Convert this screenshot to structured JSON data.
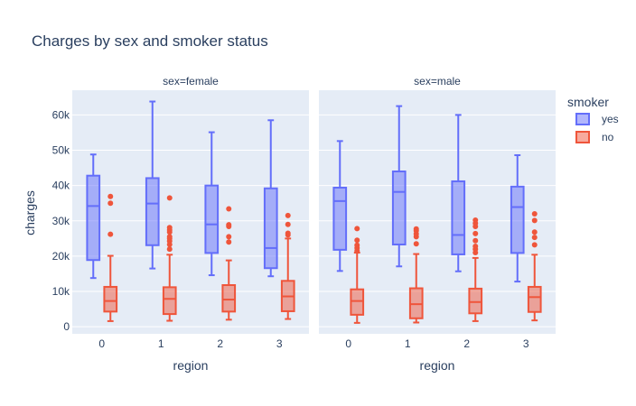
{
  "chart_data": {
    "type": "box",
    "title": "Charges by sex and smoker status",
    "xlabel": "region",
    "ylabel": "charges",
    "categories": [
      "0",
      "1",
      "2",
      "3"
    ],
    "ylim": [
      -2000,
      67000
    ],
    "yticks": [
      0,
      10000,
      20000,
      30000,
      40000,
      50000,
      60000
    ],
    "ytick_labels": [
      "0",
      "10k",
      "20k",
      "30k",
      "40k",
      "50k",
      "60k"
    ],
    "grid": true,
    "legend": {
      "title": "smoker",
      "position": "right",
      "items": [
        {
          "label": "yes",
          "color": "#636efa"
        },
        {
          "label": "no",
          "color": "#ef553b"
        }
      ]
    },
    "facets": [
      {
        "label": "sex=female",
        "series": [
          {
            "name": "yes",
            "color": "#636efa",
            "boxes": [
              {
                "min": 13800,
                "q1": 18900,
                "median": 34200,
                "q3": 42800,
                "max": 48800,
                "outliers": []
              },
              {
                "min": 16500,
                "q1": 23100,
                "median": 34900,
                "q3": 42100,
                "max": 63800,
                "outliers": []
              },
              {
                "min": 14600,
                "q1": 20900,
                "median": 29000,
                "q3": 40000,
                "max": 55100,
                "outliers": []
              },
              {
                "min": 14300,
                "q1": 16600,
                "median": 22300,
                "q3": 39200,
                "max": 58500,
                "outliers": []
              }
            ]
          },
          {
            "name": "no",
            "color": "#ef553b",
            "boxes": [
              {
                "min": 1600,
                "q1": 4300,
                "median": 7300,
                "q3": 11300,
                "max": 20100,
                "outliers": [
                  26200,
                  35000,
                  36900
                ]
              },
              {
                "min": 1700,
                "q1": 3600,
                "median": 7900,
                "q3": 11200,
                "max": 20400,
                "outliers": [
                  22000,
                  23300,
                  24300,
                  25000,
                  25500,
                  26800,
                  27400,
                  28100,
                  36500
                ]
              },
              {
                "min": 2000,
                "q1": 4300,
                "median": 7700,
                "q3": 11800,
                "max": 18800,
                "outliers": [
                  24000,
                  25500,
                  28400,
                  28900,
                  33400
                ]
              },
              {
                "min": 2200,
                "q1": 4400,
                "median": 8600,
                "q3": 13000,
                "max": 25000,
                "outliers": [
                  26000,
                  26500,
                  29000,
                  31500
                ]
              }
            ]
          }
        ]
      },
      {
        "label": "sex=male",
        "series": [
          {
            "name": "yes",
            "color": "#636efa",
            "boxes": [
              {
                "min": 15800,
                "q1": 21800,
                "median": 35600,
                "q3": 39400,
                "max": 52600,
                "outliers": []
              },
              {
                "min": 17100,
                "q1": 23300,
                "median": 38200,
                "q3": 44000,
                "max": 62500,
                "outliers": []
              },
              {
                "min": 15700,
                "q1": 20500,
                "median": 26000,
                "q3": 41200,
                "max": 60000,
                "outliers": []
              },
              {
                "min": 12800,
                "q1": 20900,
                "median": 33900,
                "q3": 39700,
                "max": 48600,
                "outliers": []
              }
            ]
          },
          {
            "name": "no",
            "color": "#ef553b",
            "boxes": [
              {
                "min": 1100,
                "q1": 3400,
                "median": 7300,
                "q3": 10600,
                "max": 21000,
                "outliers": [
                  21500,
                  22300,
                  23100,
                  24500,
                  27800
                ]
              },
              {
                "min": 1200,
                "q1": 2400,
                "median": 6400,
                "q3": 10900,
                "max": 20600,
                "outliers": [
                  23500,
                  25500,
                  26300,
                  27200,
                  27700
                ]
              },
              {
                "min": 1600,
                "q1": 3800,
                "median": 7000,
                "q3": 10800,
                "max": 19500,
                "outliers": [
                  21000,
                  22000,
                  22800,
                  24400,
                  26400,
                  28400,
                  29300,
                  30200
                ]
              },
              {
                "min": 1800,
                "q1": 4200,
                "median": 8400,
                "q3": 11300,
                "max": 20400,
                "outliers": [
                  23200,
                  25300,
                  26800,
                  30100,
                  32000
                ]
              }
            ]
          }
        ]
      }
    ]
  }
}
